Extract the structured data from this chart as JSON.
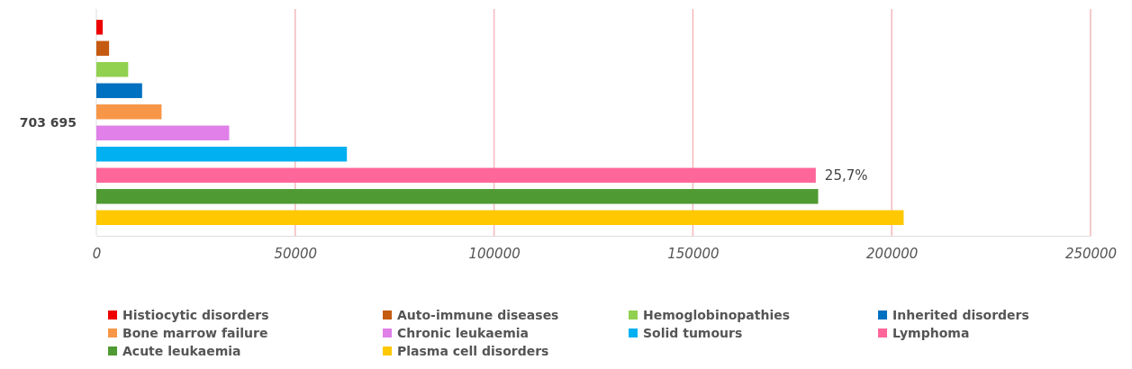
{
  "chart_data": {
    "type": "bar",
    "orientation": "horizontal",
    "categories": [
      null
    ],
    "ylabel": "703 695",
    "series": [
      {
        "name": "Histiocytic disorders",
        "color": "#ee0000",
        "values": [
          1600
        ]
      },
      {
        "name": "Auto-immune diseases",
        "color": "#c55a11",
        "values": [
          3200
        ]
      },
      {
        "name": "Hemoglobinopathies",
        "color": "#92d050",
        "values": [
          8000
        ]
      },
      {
        "name": "Inherited disorders",
        "color": "#0070c0",
        "values": [
          11500
        ]
      },
      {
        "name": "Bone marrow failure",
        "color": "#f79646",
        "values": [
          16400
        ]
      },
      {
        "name": "Chronic leukaemia",
        "color": "#e080e8",
        "values": [
          33400
        ]
      },
      {
        "name": "Solid tumours",
        "color": "#00b0f0",
        "values": [
          63000
        ]
      },
      {
        "name": "Lymphoma",
        "color": "#ff6699",
        "values": [
          180900
        ]
      },
      {
        "name": "Acute leukaemia",
        "color": "#4f9a32",
        "values": [
          181500
        ]
      },
      {
        "name": "Plasma cell disorders",
        "color": "#ffc800",
        "values": [
          203000
        ]
      }
    ],
    "xlim": [
      0,
      250000
    ],
    "xticks": [
      0,
      50000,
      100000,
      150000,
      200000,
      250000
    ],
    "grid": "x",
    "legend": "bottom",
    "annotations": [
      {
        "text": "25,7%",
        "x": 180900
      }
    ]
  }
}
